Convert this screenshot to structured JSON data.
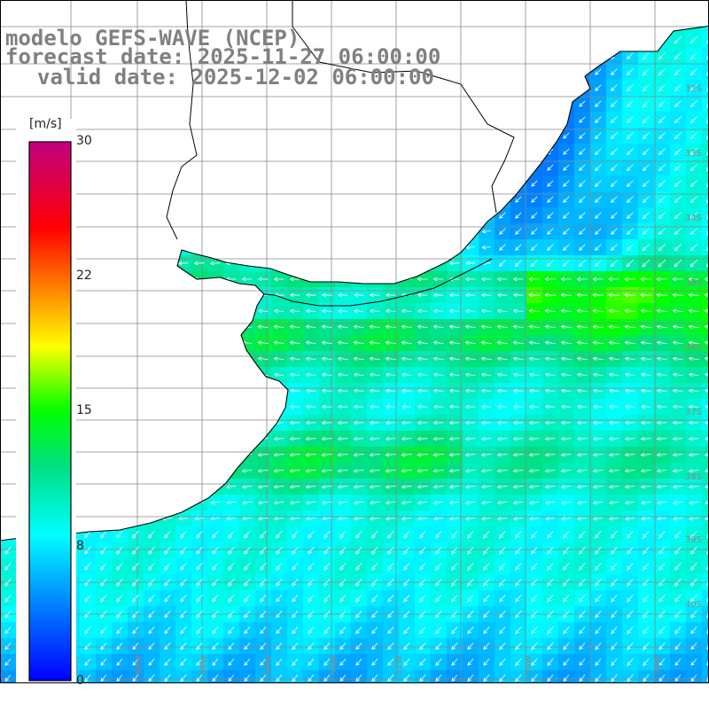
{
  "title": {
    "model": "modelo GEFS-WAVE (NCEP)",
    "forecast": "forecast date: 2025-11-27 06:00:00",
    "valid": "valid date: 2025-12-02 06:00:00"
  },
  "colorbar": {
    "unit": "[m/s]",
    "min": 0,
    "max": 30,
    "ticks": [
      "0",
      "8",
      "15",
      "22",
      "30"
    ],
    "tick_values": [
      0,
      8,
      15,
      22,
      30
    ],
    "colors": [
      "#0000ff",
      "#0080ff",
      "#00ffff",
      "#00ff00",
      "#ffff00",
      "#ff8000",
      "#ff0000",
      "#c00080"
    ]
  },
  "map": {
    "variable": "10 m wind speed and direction",
    "lat_labels": [
      "32S",
      "33S",
      "34S",
      "35S",
      "36S",
      "37S",
      "38S",
      "39S",
      "40S"
    ],
    "lat_values": [
      -32,
      -33,
      -34,
      -35,
      -36,
      -37,
      -38,
      -39,
      -40
    ],
    "lon_labels": [
      "62W",
      "60W",
      "58W",
      "56W",
      "54W",
      "52W",
      "50W",
      "48W"
    ],
    "lon_values": [
      -62,
      -60,
      -58,
      -56,
      -54,
      -52,
      -50,
      -48
    ],
    "colors": {
      "land": "#ffffff",
      "coastline": "#000000",
      "grid": "#888888",
      "vectors": "#ffffff",
      "labels": "#8a8a8a"
    }
  }
}
